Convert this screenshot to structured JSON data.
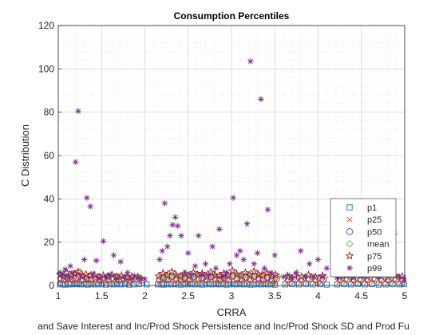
{
  "chart_data": {
    "type": "scatter",
    "title": "Consumption Percentiles",
    "xlabel": "CRRA",
    "ylabel": "C Distribution",
    "caption": "and Save Interest and Inc/Prod Shock Persistence and Inc/Prod Shock SD and Prod Fu",
    "xlim": [
      1,
      5
    ],
    "ylim": [
      0,
      120
    ],
    "xticks": [
      "1",
      "1.5",
      "2",
      "2.5",
      "3",
      "3.5",
      "4",
      "4.5",
      "5"
    ],
    "yticks": [
      "0",
      "20",
      "40",
      "60",
      "80",
      "100",
      "120"
    ],
    "grid": true,
    "minor_grid": true,
    "legend_position": "lower-right",
    "series": [
      {
        "name": "p1",
        "marker": "square",
        "color": "#0072BD",
        "x": [
          1.02,
          1.05,
          1.08,
          1.12,
          1.15,
          1.19,
          1.22,
          1.26,
          1.3,
          1.34,
          1.38,
          1.42,
          1.46,
          1.5,
          1.55,
          1.6,
          1.64,
          1.68,
          1.72,
          1.77,
          1.82,
          1.87,
          1.93,
          2.02,
          2.15,
          2.19,
          2.22,
          2.26,
          2.3,
          2.34,
          2.38,
          2.42,
          2.46,
          2.5,
          2.54,
          2.58,
          2.62,
          2.66,
          2.7,
          2.74,
          2.78,
          2.82,
          2.86,
          2.9,
          2.94,
          2.98,
          3.02,
          3.06,
          3.1,
          3.14,
          3.18,
          3.22,
          3.26,
          3.3,
          3.34,
          3.38,
          3.42,
          3.46,
          3.5,
          3.62,
          3.7,
          3.78,
          3.86,
          3.94,
          4.02,
          4.1,
          4.22,
          4.3,
          4.38,
          4.46,
          4.54,
          4.62,
          4.7,
          4.78,
          4.86,
          4.94,
          4.99
        ],
        "values": [
          0.5,
          0.6,
          0.4,
          0.7,
          0.5,
          0.6,
          0.8,
          0.5,
          0.6,
          0.4,
          0.7,
          0.5,
          0.6,
          0.5,
          0.4,
          0.6,
          0.5,
          0.7,
          0.5,
          0.6,
          0.4,
          0.5,
          0.6,
          0.5,
          0.5,
          0.6,
          0.4,
          0.7,
          0.5,
          0.6,
          0.5,
          0.4,
          0.6,
          0.5,
          0.7,
          0.5,
          0.6,
          0.4,
          0.5,
          0.6,
          0.5,
          0.7,
          0.5,
          0.6,
          0.4,
          0.5,
          0.6,
          0.5,
          0.7,
          0.5,
          0.6,
          0.4,
          0.5,
          0.6,
          0.5,
          0.7,
          0.5,
          0.6,
          0.4,
          0.5,
          0.6,
          0.5,
          0.7,
          0.5,
          0.6,
          0.4,
          0.5,
          0.6,
          0.5,
          0.7,
          0.5,
          0.6,
          0.4,
          0.5,
          0.6,
          0.5,
          0.6
        ]
      },
      {
        "name": "p25",
        "marker": "x",
        "color": "#D95319",
        "x": [
          1.02,
          1.06,
          1.1,
          1.14,
          1.18,
          1.22,
          1.27,
          1.31,
          1.35,
          1.4,
          1.45,
          1.5,
          1.56,
          1.62,
          1.68,
          1.74,
          1.8,
          1.86,
          1.94,
          2.16,
          2.2,
          2.25,
          2.3,
          2.35,
          2.4,
          2.45,
          2.5,
          2.55,
          2.6,
          2.65,
          2.7,
          2.75,
          2.8,
          2.85,
          2.9,
          2.95,
          3.0,
          3.05,
          3.1,
          3.15,
          3.2,
          3.25,
          3.3,
          3.35,
          3.4,
          3.45,
          3.5,
          3.64,
          3.72,
          3.8,
          3.88,
          3.96,
          4.04,
          4.24,
          4.32,
          4.4,
          4.48,
          4.56,
          4.64,
          4.72,
          4.8,
          4.88,
          4.96
        ],
        "values": [
          2.1,
          1.5,
          1.8,
          2.4,
          1.6,
          1.9,
          1.4,
          2.2,
          1.7,
          1.5,
          2.0,
          1.6,
          1.3,
          1.8,
          1.5,
          1.9,
          1.4,
          1.6,
          1.3,
          1.5,
          2.0,
          1.7,
          2.3,
          1.6,
          1.4,
          1.9,
          1.5,
          2.1,
          1.6,
          1.8,
          1.4,
          2.2,
          1.7,
          1.5,
          1.9,
          1.6,
          2.4,
          1.8,
          1.5,
          2.0,
          1.6,
          2.3,
          1.7,
          1.5,
          1.9,
          1.4,
          1.6,
          1.3,
          1.5,
          1.4,
          1.6,
          1.3,
          1.5,
          1.4,
          1.6,
          1.3,
          1.5,
          1.4,
          1.7,
          1.5,
          1.3,
          1.6,
          1.4
        ]
      },
      {
        "name": "p50",
        "marker": "circle",
        "color": "#7E2F8E",
        "x": [
          1.03,
          1.07,
          1.11,
          1.16,
          1.2,
          1.24,
          1.29,
          1.33,
          1.38,
          1.43,
          1.48,
          1.53,
          1.58,
          1.64,
          1.7,
          1.76,
          1.83,
          1.9,
          1.97,
          2.17,
          2.22,
          2.27,
          2.32,
          2.37,
          2.42,
          2.47,
          2.52,
          2.57,
          2.62,
          2.67,
          2.72,
          2.77,
          2.82,
          2.87,
          2.92,
          2.97,
          3.02,
          3.07,
          3.12,
          3.17,
          3.22,
          3.27,
          3.32,
          3.37,
          3.42,
          3.47,
          3.52,
          3.66,
          3.74,
          3.82,
          3.9,
          3.98,
          4.06,
          4.26,
          4.34,
          4.42,
          4.5,
          4.58,
          4.66,
          4.74,
          4.82,
          4.9,
          4.98
        ],
        "values": [
          3.2,
          2.6,
          3.8,
          2.9,
          3.4,
          4.1,
          2.7,
          3.3,
          2.8,
          3.1,
          2.5,
          3.0,
          2.7,
          3.2,
          2.6,
          2.9,
          2.4,
          2.8,
          2.5,
          2.7,
          3.6,
          3.0,
          4.2,
          3.1,
          2.8,
          3.5,
          2.9,
          3.9,
          3.2,
          3.6,
          2.7,
          4.0,
          3.1,
          2.9,
          3.6,
          3.0,
          4.5,
          3.4,
          2.9,
          3.8,
          3.1,
          4.3,
          3.3,
          2.9,
          3.7,
          2.8,
          3.2,
          2.6,
          2.9,
          2.7,
          3.1,
          2.6,
          2.9,
          2.7,
          3.0,
          2.6,
          2.9,
          2.7,
          3.2,
          2.8,
          2.6,
          3.0,
          2.7
        ]
      },
      {
        "name": "mean",
        "marker": "diamond",
        "color": "#77AC30",
        "x": [
          1.04,
          1.09,
          1.13,
          1.17,
          1.21,
          1.25,
          1.3,
          1.36,
          1.41,
          1.47,
          1.52,
          1.57,
          1.63,
          1.69,
          1.75,
          1.81,
          1.88,
          1.95,
          2.18,
          2.23,
          2.28,
          2.33,
          2.38,
          2.43,
          2.48,
          2.53,
          2.58,
          2.63,
          2.68,
          2.73,
          2.78,
          2.83,
          2.88,
          2.93,
          2.98,
          3.03,
          3.08,
          3.13,
          3.18,
          3.23,
          3.28,
          3.33,
          3.38,
          3.43,
          3.48,
          3.53,
          3.68,
          3.76,
          3.84,
          3.92,
          4.0,
          4.08,
          4.28,
          4.36,
          4.44,
          4.52,
          4.6,
          4.68,
          4.76,
          4.84,
          4.92
        ],
        "values": [
          4.5,
          3.6,
          5.2,
          4.0,
          5.8,
          6.5,
          3.8,
          4.4,
          3.9,
          4.2,
          3.5,
          4.0,
          3.6,
          4.3,
          3.5,
          3.9,
          3.3,
          3.7,
          3.6,
          4.9,
          4.1,
          5.6,
          4.2,
          3.8,
          4.8,
          4.0,
          5.3,
          4.4,
          4.9,
          3.7,
          5.4,
          4.2,
          4.0,
          4.9,
          4.1,
          6.0,
          4.6,
          4.0,
          5.1,
          4.2,
          5.8,
          4.5,
          6.2,
          5.0,
          3.8,
          4.3,
          3.5,
          3.9,
          3.6,
          4.2,
          3.5,
          3.9,
          3.6,
          4.1,
          3.5,
          3.9,
          3.6,
          4.3,
          3.8,
          3.5,
          4.0
        ]
      },
      {
        "name": "p75",
        "marker": "pentagram",
        "color": "#A2142F",
        "x": [
          1.02,
          1.06,
          1.1,
          1.15,
          1.19,
          1.23,
          1.28,
          1.32,
          1.37,
          1.42,
          1.47,
          1.52,
          1.57,
          1.62,
          1.67,
          1.73,
          1.79,
          1.85,
          1.92,
          2.16,
          2.21,
          2.26,
          2.31,
          2.36,
          2.41,
          2.46,
          2.51,
          2.56,
          2.61,
          2.66,
          2.71,
          2.76,
          2.81,
          2.86,
          2.91,
          2.96,
          3.01,
          3.06,
          3.11,
          3.16,
          3.21,
          3.26,
          3.31,
          3.36,
          3.41,
          3.46,
          3.51,
          3.65,
          3.73,
          3.81,
          3.89,
          3.97,
          4.05,
          4.25,
          4.33,
          4.41,
          4.49,
          4.57,
          4.65,
          4.73,
          4.81,
          4.89,
          4.97
        ],
        "values": [
          5.0,
          4.1,
          5.9,
          4.6,
          5.4,
          6.2,
          4.3,
          5.1,
          4.4,
          4.8,
          3.9,
          4.6,
          4.1,
          4.9,
          4.0,
          4.5,
          3.7,
          4.2,
          3.9,
          4.3,
          5.6,
          4.7,
          6.3,
          4.8,
          4.3,
          5.4,
          4.5,
          6.0,
          4.9,
          5.5,
          4.2,
          6.1,
          4.8,
          4.5,
          5.5,
          4.6,
          6.8,
          5.2,
          4.5,
          5.8,
          4.8,
          6.5,
          5.1,
          4.5,
          5.7,
          4.3,
          4.9,
          4.0,
          4.5,
          4.1,
          4.8,
          4.0,
          4.5,
          4.1,
          4.7,
          4.0,
          4.5,
          4.1,
          4.9,
          4.3,
          4.0,
          4.6,
          4.2
        ]
      },
      {
        "name": "p99",
        "marker": "asterisk",
        "color": "#7E2F8E",
        "x": [
          1.02,
          1.05,
          1.08,
          1.11,
          1.14,
          1.17,
          1.2,
          1.23,
          1.26,
          1.3,
          1.33,
          1.37,
          1.4,
          1.44,
          1.48,
          1.52,
          1.56,
          1.6,
          1.64,
          1.68,
          1.72,
          1.76,
          1.8,
          1.84,
          1.88,
          1.92,
          1.96,
          2.0,
          2.17,
          2.2,
          2.23,
          2.26,
          2.29,
          2.32,
          2.35,
          2.38,
          2.42,
          2.46,
          2.5,
          2.54,
          2.58,
          2.62,
          2.66,
          2.7,
          2.74,
          2.78,
          2.82,
          2.86,
          2.9,
          2.94,
          2.98,
          3.02,
          3.06,
          3.1,
          3.14,
          3.18,
          3.22,
          3.26,
          3.3,
          3.34,
          3.38,
          3.42,
          3.46,
          3.5,
          3.6,
          3.65,
          3.7,
          3.75,
          3.8,
          3.85,
          3.9,
          3.95,
          4.0,
          4.05,
          4.1,
          4.22,
          4.28,
          4.34,
          4.4,
          4.46,
          4.52,
          4.58,
          4.64,
          4.7,
          4.76,
          4.82,
          4.88,
          4.94,
          4.99
        ],
        "values": [
          6.0,
          5.0,
          7.5,
          4.2,
          9.0,
          6.0,
          57.0,
          80.5,
          4.0,
          12.0,
          40.5,
          36.5,
          5.5,
          11.5,
          3.5,
          20.5,
          4.0,
          5.0,
          14.0,
          3.5,
          11.0,
          4.0,
          6.0,
          3.0,
          4.5,
          3.5,
          3.0,
          3.0,
          12.0,
          16.0,
          38.0,
          18.0,
          23.0,
          28.0,
          31.5,
          27.5,
          23.0,
          6.0,
          15.0,
          5.0,
          9.0,
          23.0,
          5.0,
          10.0,
          5.0,
          18.0,
          8.0,
          26.0,
          4.0,
          6.0,
          10.0,
          40.5,
          14.0,
          16.0,
          12.0,
          28.5,
          103.5,
          10.0,
          15.0,
          86.0,
          8.0,
          35.0,
          6.0,
          14.0,
          4.0,
          5.0,
          3.5,
          6.0,
          16.0,
          4.0,
          10.0,
          4.0,
          12.0,
          4.0,
          8.0,
          3.5,
          4.5,
          6.0,
          4.0,
          10.0,
          4.5,
          5.0,
          8.0,
          4.0,
          20.0,
          6.0,
          24.0,
          4.0,
          3.0
        ]
      }
    ]
  }
}
